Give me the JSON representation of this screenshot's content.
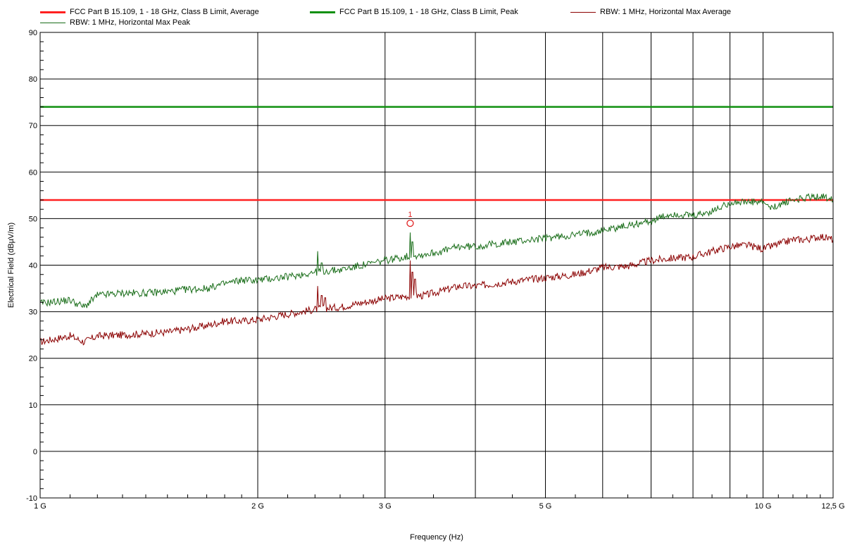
{
  "chart_data": {
    "type": "line",
    "x_scale": "log",
    "xlabel": "Frequency (Hz)",
    "ylabel": "Electrical Field (dBµV/m)",
    "xlim_hz": [
      1000000000,
      12500000000
    ],
    "ylim": [
      -10,
      90
    ],
    "grid": true,
    "y_ticks": [
      -10,
      0,
      10,
      20,
      30,
      40,
      50,
      60,
      70,
      80,
      90
    ],
    "x_ticks": [
      {
        "value": 1000000000,
        "label": "1 G"
      },
      {
        "value": 2000000000,
        "label": "2 G"
      },
      {
        "value": 3000000000,
        "label": "3 G"
      },
      {
        "value": 4000000000,
        "label": ""
      },
      {
        "value": 5000000000,
        "label": "5 G"
      },
      {
        "value": 6000000000,
        "label": ""
      },
      {
        "value": 7000000000,
        "label": ""
      },
      {
        "value": 8000000000,
        "label": ""
      },
      {
        "value": 9000000000,
        "label": ""
      },
      {
        "value": 10000000000,
        "label": "10 G"
      },
      {
        "value": 12500000000,
        "label": "12,5 G"
      }
    ],
    "limits": [
      {
        "name": "FCC Part B 15.109, 1 - 18 GHz, Class B Limit, Average",
        "value": 54,
        "color": "#ff2020"
      },
      {
        "name": "FCC Part B 15.109, 1 - 18 GHz, Class B Limit, Peak",
        "value": 74,
        "color": "#109010"
      }
    ],
    "series": [
      {
        "name": "RBW: 1 MHz, Horizontal Max Average",
        "color": "#8b0000",
        "points": [
          [
            1.0,
            23.5
          ],
          [
            1.1,
            24.8
          ],
          [
            1.15,
            23.5
          ],
          [
            1.2,
            24.8
          ],
          [
            1.3,
            25.0
          ],
          [
            1.4,
            25.3
          ],
          [
            1.5,
            25.6
          ],
          [
            1.6,
            26.3
          ],
          [
            1.7,
            27.0
          ],
          [
            1.8,
            28.0
          ],
          [
            1.9,
            28.0
          ],
          [
            2.0,
            28.3
          ],
          [
            2.2,
            29.5
          ],
          [
            2.4,
            30.5
          ],
          [
            2.6,
            31.0
          ],
          [
            2.8,
            32.0
          ],
          [
            3.0,
            32.8
          ],
          [
            3.2,
            33.3
          ],
          [
            3.4,
            33.5
          ],
          [
            3.6,
            34.5
          ],
          [
            3.8,
            35.5
          ],
          [
            4.0,
            35.5
          ],
          [
            4.5,
            36.5
          ],
          [
            5.0,
            37.3
          ],
          [
            5.5,
            38.0
          ],
          [
            6.0,
            39.5
          ],
          [
            6.5,
            39.8
          ],
          [
            7.0,
            41.0
          ],
          [
            7.5,
            41.5
          ],
          [
            8.0,
            41.8
          ],
          [
            8.5,
            43.0
          ],
          [
            9.0,
            44.0
          ],
          [
            9.5,
            44.3
          ],
          [
            10.0,
            43.5
          ],
          [
            10.5,
            44.5
          ],
          [
            11.0,
            45.5
          ],
          [
            11.5,
            45.5
          ],
          [
            12.0,
            46.2
          ],
          [
            12.5,
            45.5
          ]
        ],
        "spikes": [
          [
            2.42,
            35.5
          ],
          [
            2.45,
            33.5
          ],
          [
            2.48,
            33.0
          ],
          [
            3.25,
            41.0
          ],
          [
            3.27,
            38.5
          ],
          [
            3.3,
            37.0
          ]
        ]
      },
      {
        "name": "RBW: 1 MHz, Horizontal Max Peak",
        "color": "#1a6e1a",
        "points": [
          [
            1.0,
            31.8
          ],
          [
            1.1,
            32.5
          ],
          [
            1.15,
            31.0
          ],
          [
            1.2,
            33.5
          ],
          [
            1.3,
            34.0
          ],
          [
            1.4,
            34.0
          ],
          [
            1.5,
            34.3
          ],
          [
            1.6,
            34.8
          ],
          [
            1.7,
            35.0
          ],
          [
            1.8,
            36.0
          ],
          [
            1.9,
            36.8
          ],
          [
            2.0,
            36.8
          ],
          [
            2.2,
            37.5
          ],
          [
            2.4,
            38.5
          ],
          [
            2.6,
            39.0
          ],
          [
            2.8,
            40.0
          ],
          [
            3.0,
            41.0
          ],
          [
            3.2,
            41.8
          ],
          [
            3.4,
            42.3
          ],
          [
            3.6,
            43.0
          ],
          [
            3.8,
            44.0
          ],
          [
            4.0,
            44.0
          ],
          [
            4.5,
            45.0
          ],
          [
            5.0,
            45.8
          ],
          [
            5.5,
            46.5
          ],
          [
            6.0,
            47.5
          ],
          [
            6.5,
            48.5
          ],
          [
            7.0,
            49.5
          ],
          [
            7.5,
            51.0
          ],
          [
            8.0,
            50.5
          ],
          [
            8.5,
            51.5
          ],
          [
            9.0,
            53.5
          ],
          [
            9.5,
            53.5
          ],
          [
            10.0,
            53.5
          ],
          [
            10.3,
            52.0
          ],
          [
            10.5,
            53.0
          ],
          [
            11.0,
            54.0
          ],
          [
            11.5,
            54.5
          ],
          [
            12.0,
            54.8
          ],
          [
            12.5,
            54.3
          ]
        ],
        "spikes": [
          [
            2.42,
            43.0
          ],
          [
            2.45,
            40.5
          ],
          [
            3.25,
            47.0
          ],
          [
            3.27,
            45.0
          ]
        ]
      }
    ],
    "marker": {
      "label": "1",
      "x_ghz": 3.25,
      "y": 49,
      "color": "#e02020"
    }
  }
}
